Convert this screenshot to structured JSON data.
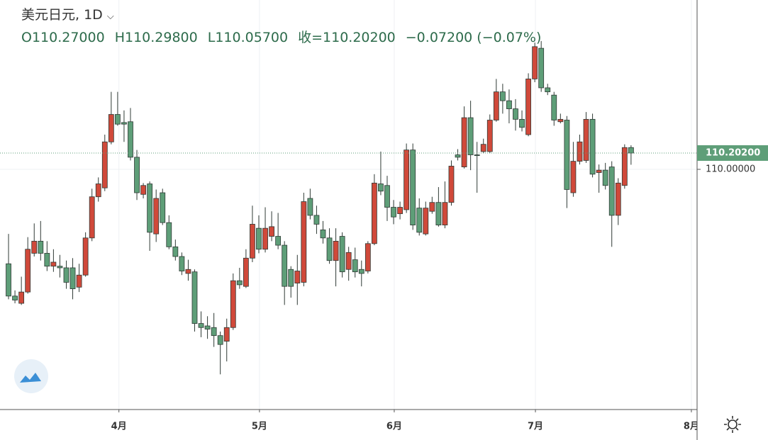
{
  "header": {
    "symbol": "美元日元, 1D",
    "open": "O110.27000",
    "high": "H110.29800",
    "low": "L110.05700",
    "close": "收=110.20200",
    "change": "−0.07200 (−0.07%)"
  },
  "chart_data": {
    "type": "candlestick",
    "categories": [
      null,
      null,
      null,
      null,
      null,
      null,
      null,
      null,
      null,
      null,
      null,
      null,
      null,
      null,
      null,
      null,
      null,
      null,
      null,
      null,
      null,
      null,
      null,
      null,
      null,
      null,
      null,
      null,
      null,
      null,
      null,
      null,
      null,
      null,
      null,
      null,
      null,
      null,
      null,
      null,
      null,
      null,
      null,
      null,
      null,
      null,
      null,
      null,
      null,
      null,
      null,
      null,
      null,
      null,
      null,
      null,
      null,
      null,
      null,
      null,
      null,
      null,
      null,
      null,
      null,
      null,
      null,
      null,
      null,
      null,
      null,
      null,
      null,
      null,
      null,
      null,
      null,
      null,
      null,
      null,
      null,
      null,
      null,
      null,
      null,
      null,
      null,
      null,
      null,
      null,
      null,
      null,
      null,
      null,
      null,
      null,
      null,
      null
    ],
    "open": [
      108.83,
      108.43,
      108.34,
      108.48,
      108.96,
      109.11,
      108.96,
      108.8,
      108.8,
      108.78,
      108.78,
      108.54,
      108.69,
      109.15,
      109.66,
      109.77,
      110.34,
      110.68,
      110.58,
      110.59,
      110.15,
      109.69,
      109.82,
      109.2,
      109.71,
      109.34,
      109.04,
      108.92,
      108.71,
      108.73,
      108.09,
      108.06,
      108.04,
      107.94,
      107.87,
      108.04,
      108.62,
      108.55,
      108.9,
      109.27,
      109.01,
      109.17,
      109.17,
      109.06,
      108.76,
      108.59,
      108.6,
      109.64,
      109.43,
      109.25,
      109.15,
      108.87,
      109.17,
      108.76,
      108.88,
      108.76,
      108.74,
      109.08,
      109.82,
      109.8,
      109.53,
      109.45,
      109.5,
      110.24,
      109.52,
      109.2,
      109.48,
      109.59,
      109.31,
      109.59,
      110.18,
      110.03,
      110.64,
      110.18,
      110.22,
      110.22,
      110.61,
      110.96,
      110.85,
      110.75,
      110.62,
      110.43,
      111.12,
      111.5,
      111.01,
      110.92,
      110.59,
      110.61,
      109.71,
      110.1,
      110.11,
      110.62,
      109.96,
      109.99,
      110.03,
      109.43,
      109.8,
      110.27
    ],
    "high": [
      109.2,
      108.5,
      108.67,
      109.16,
      109.33,
      109.36,
      109.11,
      109.01,
      108.94,
      108.87,
      108.9,
      108.83,
      109.22,
      109.76,
      109.9,
      110.43,
      110.96,
      110.96,
      110.73,
      110.76,
      110.24,
      109.83,
      109.85,
      109.75,
      109.76,
      109.43,
      109.13,
      108.97,
      108.88,
      108.76,
      108.24,
      108.18,
      108.22,
      107.99,
      108.15,
      108.71,
      108.78,
      109.01,
      109.55,
      109.43,
      109.53,
      109.48,
      109.46,
      109.11,
      108.8,
      108.94,
      109.71,
      109.76,
      109.55,
      109.36,
      109.27,
      109.27,
      109.22,
      109.04,
      109.03,
      108.87,
      109.11,
      109.94,
      110.22,
      109.92,
      109.62,
      109.6,
      110.32,
      110.32,
      109.64,
      109.6,
      109.66,
      109.78,
      109.85,
      110.11,
      110.25,
      110.78,
      110.85,
      110.34,
      110.38,
      110.68,
      111.12,
      111.06,
      110.99,
      110.87,
      110.73,
      111.19,
      111.57,
      111.59,
      111.06,
      110.96,
      110.69,
      110.66,
      110.34,
      110.43,
      110.71,
      110.69,
      110.06,
      110.08,
      110.1,
      109.89,
      110.31,
      110.298
    ],
    "low": [
      108.39,
      108.34,
      108.32,
      108.46,
      108.92,
      108.87,
      108.74,
      108.73,
      108.66,
      108.52,
      108.39,
      108.48,
      108.67,
      109.11,
      109.6,
      109.73,
      110.31,
      110.54,
      110.34,
      110.11,
      109.62,
      109.64,
      108.99,
      109.1,
      109.31,
      109.01,
      108.87,
      108.69,
      108.62,
      107.99,
      107.92,
      107.9,
      107.8,
      107.46,
      107.62,
      108.01,
      108.52,
      108.53,
      108.85,
      108.96,
      108.97,
      109.11,
      109.01,
      108.32,
      108.41,
      108.32,
      108.55,
      109.38,
      109.2,
      109.08,
      108.83,
      108.55,
      108.66,
      108.62,
      108.66,
      108.55,
      108.71,
      109.06,
      109.68,
      109.36,
      109.32,
      109.38,
      109.46,
      109.25,
      109.18,
      109.18,
      109.45,
      109.29,
      109.27,
      109.55,
      110.11,
      110.01,
      109.99,
      109.71,
      110.2,
      110.2,
      110.59,
      110.69,
      110.57,
      110.48,
      110.47,
      110.41,
      111.08,
      110.96,
      110.92,
      110.54,
      110.57,
      109.52,
      109.66,
      110.06,
      110.08,
      109.9,
      109.71,
      109.75,
      109.04,
      109.31,
      109.76,
      110.057
    ],
    "close": [
      108.43,
      108.38,
      108.48,
      109.01,
      109.11,
      108.96,
      108.8,
      108.85,
      108.78,
      108.6,
      108.52,
      108.69,
      109.15,
      109.66,
      109.82,
      110.34,
      110.68,
      110.56,
      110.56,
      110.15,
      109.71,
      109.8,
      109.22,
      109.64,
      109.34,
      109.04,
      108.92,
      108.74,
      108.76,
      108.09,
      108.04,
      108.02,
      107.94,
      107.83,
      108.04,
      108.62,
      108.57,
      108.9,
      109.32,
      109.01,
      109.27,
      109.29,
      109.06,
      108.55,
      108.55,
      108.74,
      109.6,
      109.43,
      109.32,
      109.15,
      108.87,
      109.11,
      108.73,
      108.97,
      108.73,
      108.71,
      109.08,
      109.83,
      109.73,
      109.53,
      109.41,
      109.53,
      110.24,
      109.31,
      109.22,
      109.52,
      109.59,
      109.31,
      109.59,
      110.04,
      110.15,
      110.64,
      110.18,
      110.17,
      110.31,
      110.61,
      110.96,
      110.85,
      110.75,
      110.62,
      110.52,
      111.12,
      111.52,
      111.01,
      110.96,
      110.61,
      110.62,
      109.75,
      110.1,
      110.34,
      110.62,
      109.94,
      109.99,
      109.8,
      109.43,
      109.83,
      110.27,
      110.202
    ],
    "up_color": "#d0493a",
    "down_color": "#5e9e78",
    "xlim": [
      -1.33,
      107.29
    ],
    "xticks": [
      {
        "value": 17.2,
        "label": "4月"
      },
      {
        "value": 39.1,
        "label": "5月"
      },
      {
        "value": 60.1,
        "label": "6月"
      },
      {
        "value": 82.1,
        "label": "7月"
      },
      {
        "value": 106.4,
        "label": "8月"
      }
    ],
    "ylim": [
      107.024,
      112.098
    ],
    "yticks": [
      {
        "value": 110,
        "label": "110.00000"
      }
    ],
    "last_price": {
      "value": 110.202,
      "label": "110.20200"
    },
    "grid": true
  }
}
